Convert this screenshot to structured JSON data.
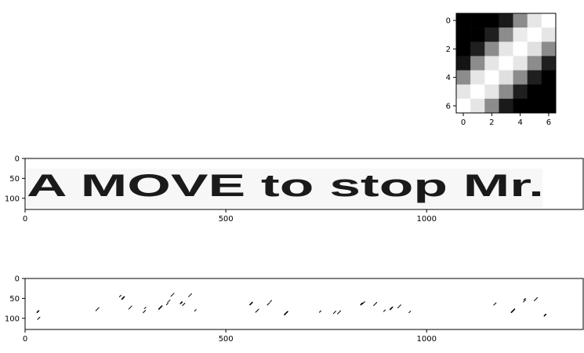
{
  "chart_data": [
    {
      "type": "heatmap",
      "panel": "kernel",
      "size": [
        7,
        7
      ],
      "values": [
        [
          0.0,
          0.0,
          0.0,
          0.1,
          0.55,
          0.9,
          1.0
        ],
        [
          0.0,
          0.0,
          0.12,
          0.55,
          0.92,
          1.0,
          0.9
        ],
        [
          0.0,
          0.12,
          0.55,
          0.9,
          1.0,
          0.88,
          0.55
        ],
        [
          0.08,
          0.55,
          0.9,
          1.0,
          0.9,
          0.55,
          0.12
        ],
        [
          0.55,
          0.9,
          1.0,
          0.88,
          0.55,
          0.12,
          0.0
        ],
        [
          0.9,
          1.0,
          0.9,
          0.55,
          0.12,
          0.0,
          0.0
        ],
        [
          1.0,
          0.9,
          0.55,
          0.1,
          0.0,
          0.0,
          0.0
        ]
      ],
      "colormap": "gray",
      "xticks": [
        "0",
        "2",
        "4",
        "6"
      ],
      "yticks": [
        "0",
        "2",
        "4",
        "6"
      ],
      "xlim": [
        -0.5,
        6.5
      ],
      "ylim": [
        6.5,
        -0.5
      ]
    },
    {
      "type": "heatmap",
      "panel": "input-image",
      "image_text": "A MOVE to stop Mr.",
      "xlim": [
        0,
        1390
      ],
      "ylim": [
        128,
        0
      ],
      "xticks": [
        "0",
        "500",
        "1000"
      ],
      "yticks": [
        "0",
        "50",
        "100"
      ],
      "colormap": "gray"
    },
    {
      "type": "heatmap",
      "panel": "filtered-output",
      "xlim": [
        0,
        1390
      ],
      "ylim": [
        128,
        0
      ],
      "xticks": [
        "0",
        "500",
        "1000"
      ],
      "yticks": [
        "0",
        "50",
        "100"
      ],
      "colormap": "gray",
      "description_marks": [
        [
          32,
          83
        ],
        [
          34,
          100
        ],
        [
          180,
          77
        ],
        [
          237,
          44
        ],
        [
          244,
          49
        ],
        [
          262,
          73
        ],
        [
          299,
          74
        ],
        [
          297,
          83
        ],
        [
          337,
          73
        ],
        [
          354,
          64
        ],
        [
          358,
          57
        ],
        [
          367,
          41
        ],
        [
          389,
          61
        ],
        [
          395,
          65
        ],
        [
          411,
          42
        ],
        [
          424,
          80
        ],
        [
          563,
          63
        ],
        [
          578,
          81
        ],
        [
          612,
          57
        ],
        [
          606,
          64
        ],
        [
          650,
          87
        ],
        [
          735,
          83
        ],
        [
          771,
          85
        ],
        [
          782,
          85
        ],
        [
          838,
          64
        ],
        [
          843,
          61
        ],
        [
          872,
          64
        ],
        [
          895,
          81
        ],
        [
          912,
          75
        ],
        [
          932,
          70
        ],
        [
          958,
          84
        ],
        [
          1170,
          64
        ],
        [
          1215,
          81
        ],
        [
          1244,
          52
        ],
        [
          1244,
          56
        ],
        [
          1272,
          52
        ],
        [
          1295,
          92
        ]
      ]
    }
  ]
}
